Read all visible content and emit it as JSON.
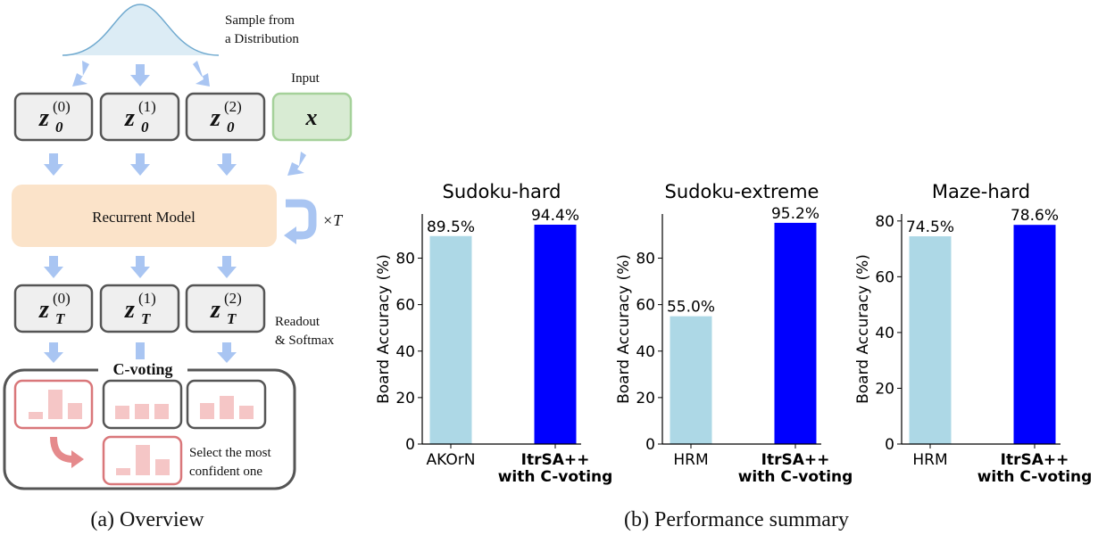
{
  "diagram": {
    "sample_text": [
      "Sample from",
      "a Distribution"
    ],
    "input_label": "Input",
    "initial_nodes": [
      {
        "base": "z",
        "sub": "0",
        "sup": "(0)"
      },
      {
        "base": "z",
        "sub": "0",
        "sup": "(1)"
      },
      {
        "base": "z",
        "sub": "0",
        "sup": "(2)"
      }
    ],
    "input_node": "x",
    "model": "Recurrent Model",
    "repeat": "×T",
    "final_nodes": [
      {
        "base": "z",
        "sub": "T",
        "sup": "(0)"
      },
      {
        "base": "z",
        "sub": "T",
        "sup": "(1)"
      },
      {
        "base": "z",
        "sub": "T",
        "sup": "(2)"
      }
    ],
    "readout": [
      "Readout",
      "& Softmax"
    ],
    "voting_title": "C-voting",
    "select_text": [
      "Select the most",
      "confident one"
    ]
  },
  "captions": [
    "(a) Overview",
    "(b) Performance summary"
  ],
  "chart_data": [
    {
      "type": "bar",
      "title": "Sudoku-hard",
      "y_label": "Board Accuracy (%)",
      "categories": [
        "AKOrN",
        "ItrSA++\nwith C-voting"
      ],
      "category_font_weight": [
        "normal",
        "bold"
      ],
      "values": [
        89.5,
        94.4
      ],
      "value_labels": [
        "89.5%",
        "94.4%"
      ],
      "colors": [
        "#add8e6",
        "#0000ff"
      ],
      "ylim": [
        0,
        99
      ],
      "yticks": [
        0,
        20,
        40,
        60,
        80
      ]
    },
    {
      "type": "bar",
      "title": "Sudoku-extreme",
      "y_label": "Board Accuracy (%)",
      "categories": [
        "HRM",
        "ItrSA++\nwith C-voting"
      ],
      "category_font_weight": [
        "normal",
        "bold"
      ],
      "values": [
        55.0,
        95.2
      ],
      "value_labels": [
        "55.0%",
        "95.2%"
      ],
      "colors": [
        "#add8e6",
        "#0000ff"
      ],
      "ylim": [
        0,
        99
      ],
      "yticks": [
        0,
        20,
        40,
        60,
        80
      ]
    },
    {
      "type": "bar",
      "title": "Maze-hard",
      "y_label": "Board Accuracy (%)",
      "categories": [
        "HRM",
        "ItrSA++\nwith C-voting"
      ],
      "category_font_weight": [
        "normal",
        "bold"
      ],
      "values": [
        74.5,
        78.6
      ],
      "value_labels": [
        "74.5%",
        "78.6%"
      ],
      "colors": [
        "#add8e6",
        "#0000ff"
      ],
      "ylim": [
        0,
        82.5
      ],
      "yticks": [
        0,
        20,
        40,
        60,
        80
      ]
    }
  ]
}
